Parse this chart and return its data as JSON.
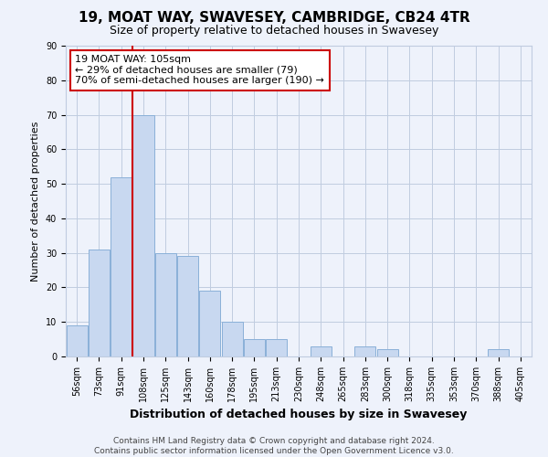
{
  "title": "19, MOAT WAY, SWAVESEY, CAMBRIDGE, CB24 4TR",
  "subtitle": "Size of property relative to detached houses in Swavesey",
  "xlabel": "Distribution of detached houses by size in Swavesey",
  "ylabel": "Number of detached properties",
  "bar_labels": [
    "56sqm",
    "73sqm",
    "91sqm",
    "108sqm",
    "125sqm",
    "143sqm",
    "160sqm",
    "178sqm",
    "195sqm",
    "213sqm",
    "230sqm",
    "248sqm",
    "265sqm",
    "283sqm",
    "300sqm",
    "318sqm",
    "335sqm",
    "353sqm",
    "370sqm",
    "388sqm",
    "405sqm"
  ],
  "bar_values": [
    9,
    31,
    52,
    70,
    30,
    29,
    19,
    10,
    5,
    5,
    0,
    3,
    0,
    3,
    2,
    0,
    0,
    0,
    0,
    2,
    0
  ],
  "bar_color": "#c8d8f0",
  "bar_edge_color": "#8ab0d8",
  "vline_index": 3,
  "ylim": [
    0,
    90
  ],
  "yticks": [
    0,
    10,
    20,
    30,
    40,
    50,
    60,
    70,
    80,
    90
  ],
  "annotation_line1": "19 MOAT WAY: 105sqm",
  "annotation_line2": "← 29% of detached houses are smaller (79)",
  "annotation_line3": "70% of semi-detached houses are larger (190) →",
  "annotation_box_color": "#ffffff",
  "annotation_box_edge": "#cc0000",
  "vline_color": "#cc0000",
  "footer_line1": "Contains HM Land Registry data © Crown copyright and database right 2024.",
  "footer_line2": "Contains public sector information licensed under the Open Government Licence v3.0.",
  "bg_color": "#eef2fb",
  "grid_color": "#c0cce0",
  "title_fontsize": 11,
  "subtitle_fontsize": 9,
  "ylabel_fontsize": 8,
  "xlabel_fontsize": 9,
  "tick_fontsize": 7,
  "footer_fontsize": 6.5,
  "annot_fontsize": 8
}
